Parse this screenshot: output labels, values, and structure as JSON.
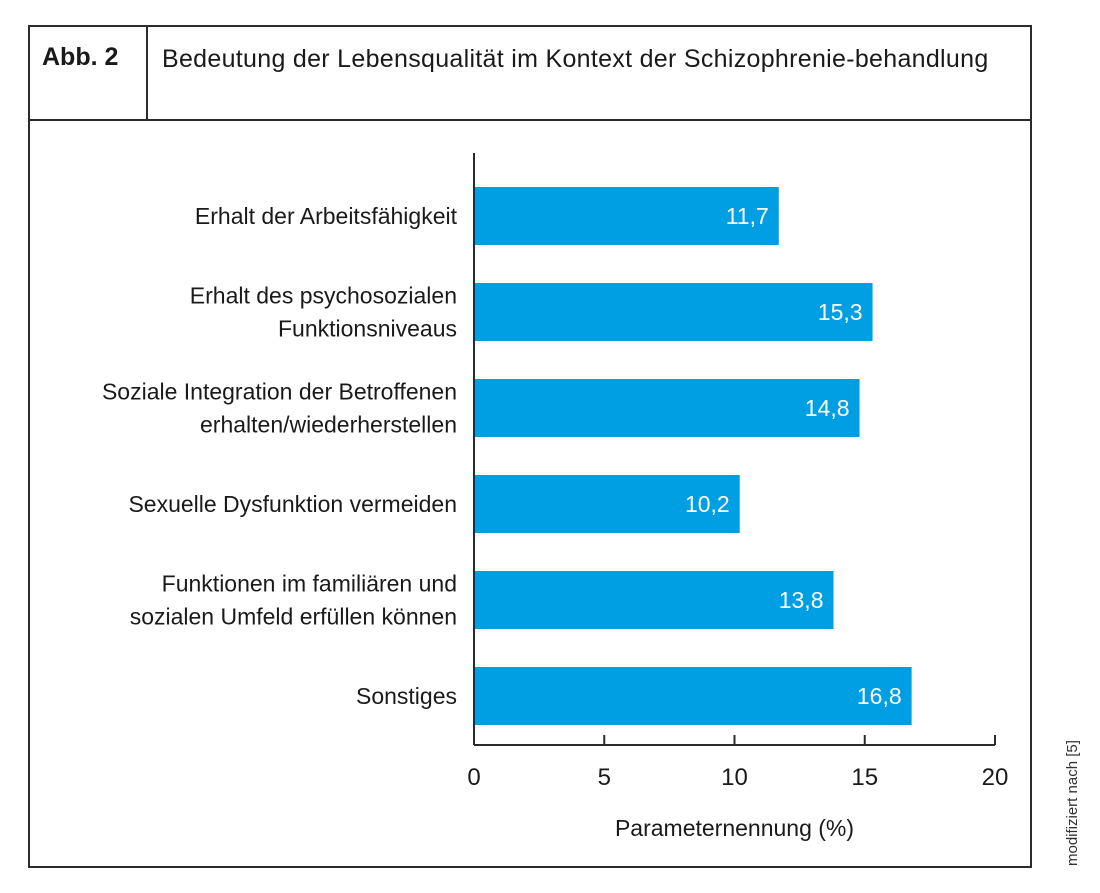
{
  "figure": {
    "label": "Abb. 2",
    "title": "Bedeutung der Lebensqualität im Kontext der Schizophrenie-behandlung",
    "source_note": "modifiziert nach [5]"
  },
  "colors": {
    "bar": "#009fe3",
    "bar_label": "#ffffff",
    "axis": "#2b2b2b",
    "text": "#1a1a1a"
  },
  "chart_data": {
    "type": "bar",
    "orientation": "horizontal",
    "title": "Bedeutung der Lebensqualität im Kontext der Schizophrenie-behandlung",
    "xlabel": "Parameternennung (%)",
    "ylabel": "",
    "xlim": [
      0,
      20
    ],
    "xticks": [
      0,
      5,
      10,
      15,
      20
    ],
    "grid": false,
    "categories": [
      [
        "Erhalt der Arbeitsfähigkeit"
      ],
      [
        "Erhalt des psychosozialen",
        "Funktionsniveaus"
      ],
      [
        "Soziale Integration der Betroffenen",
        "erhalten/wiederherstellen"
      ],
      [
        "Sexuelle Dysfunktion vermeiden"
      ],
      [
        "Funktionen im familiären und",
        "sozialen Umfeld erfüllen können"
      ],
      [
        "Sonstiges"
      ]
    ],
    "values": [
      11.7,
      15.3,
      14.8,
      10.2,
      13.8,
      16.8
    ],
    "value_labels": [
      "11,7",
      "15,3",
      "14,8",
      "10,2",
      "13,8",
      "16,8"
    ]
  }
}
